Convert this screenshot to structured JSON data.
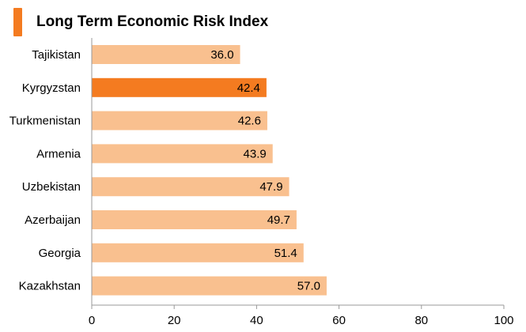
{
  "chart_data": {
    "type": "bar",
    "orientation": "horizontal",
    "title": "Long Term Economic Risk Index",
    "categories": [
      "Tajikistan",
      "Kyrgyzstan",
      "Turkmenistan",
      "Armenia",
      "Uzbekistan",
      "Azerbaijan",
      "Georgia",
      "Kazakhstan"
    ],
    "values": [
      36.0,
      42.4,
      42.6,
      43.9,
      47.9,
      49.7,
      51.4,
      57.0
    ],
    "value_labels": [
      "36.0",
      "42.4",
      "42.6",
      "43.9",
      "47.9",
      "49.7",
      "51.4",
      "57.0"
    ],
    "highlight_category": "Kyrgyzstan",
    "xlim": [
      0,
      100
    ],
    "xticks": [
      0,
      20,
      40,
      60,
      80,
      100
    ],
    "xtick_labels": [
      "0",
      "20",
      "40",
      "60",
      "80",
      "100"
    ],
    "grid": false,
    "colors": {
      "bar": "#f9c08f",
      "highlight": "#f47b20",
      "accent": "#f47b20",
      "axis": "#999999",
      "text": "#000000"
    }
  }
}
